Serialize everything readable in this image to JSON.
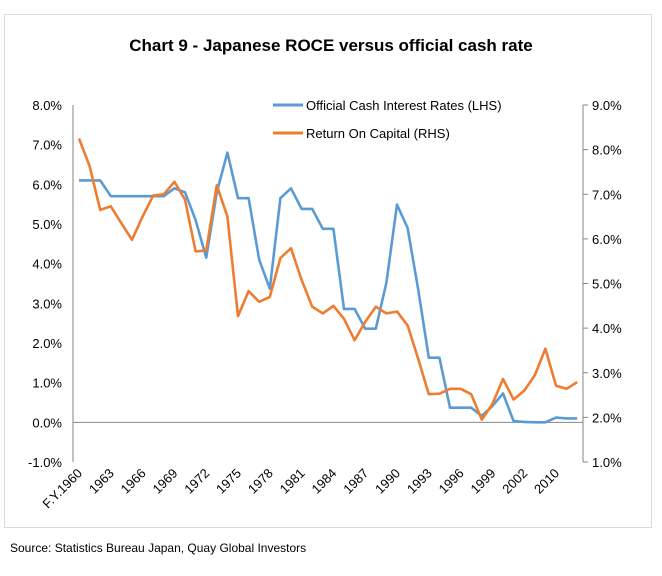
{
  "chart_data": {
    "type": "line",
    "title": "Chart 9 - Japanese ROCE versus official cash rate",
    "source": "Source: Statistics Bureau Japan, Quay Global Investors",
    "x_tick_labels": [
      "F.Y.1960",
      "1963",
      "1966",
      "1969",
      "1972",
      "1975",
      "1978",
      "1981",
      "1984",
      "1987",
      "1990",
      "1993",
      "1996",
      "1999",
      "2002",
      "2010"
    ],
    "x_tick_every": 3,
    "left_axis": {
      "ylim": [
        -1,
        8
      ],
      "step": 1,
      "tick_labels": [
        "-1.0%",
        "0.0%",
        "1.0%",
        "2.0%",
        "3.0%",
        "4.0%",
        "5.0%",
        "6.0%",
        "7.0%",
        "8.0%"
      ]
    },
    "right_axis": {
      "ylim": [
        1,
        9
      ],
      "step": 1,
      "tick_labels": [
        "1.0%",
        "2.0%",
        "3.0%",
        "4.0%",
        "5.0%",
        "6.0%",
        "7.0%",
        "8.0%",
        "9.0%"
      ]
    },
    "grid": false,
    "legend_position": "top",
    "series": [
      {
        "name": "Official Cash Interest Rates (LHS)",
        "axis": "left",
        "color": "#5b9bd5",
        "values": [
          6.1,
          6.1,
          6.1,
          5.7,
          5.7,
          5.7,
          5.7,
          5.7,
          5.7,
          5.9,
          5.8,
          5.1,
          4.15,
          5.8,
          6.8,
          5.65,
          5.65,
          4.1,
          3.37,
          5.65,
          5.9,
          5.38,
          5.38,
          4.88,
          4.88,
          2.86,
          2.86,
          2.36,
          2.36,
          3.52,
          5.49,
          4.9,
          3.35,
          1.63,
          1.63,
          0.37,
          0.37,
          0.37,
          0.16,
          0.41,
          0.73,
          0.03,
          0.01,
          0.0,
          0.0,
          0.12,
          0.1,
          0.1
        ]
      },
      {
        "name": "Return On Capital (RHS)",
        "axis": "right",
        "color": "#ed7d31",
        "values": [
          8.25,
          7.63,
          6.65,
          6.73,
          6.35,
          5.98,
          6.5,
          6.97,
          7.0,
          7.28,
          6.88,
          5.72,
          5.74,
          7.2,
          6.5,
          4.27,
          4.83,
          4.59,
          4.7,
          5.57,
          5.79,
          5.08,
          4.48,
          4.33,
          4.5,
          4.21,
          3.73,
          4.14,
          4.48,
          4.33,
          4.37,
          4.06,
          3.31,
          2.52,
          2.53,
          2.64,
          2.64,
          2.52,
          1.95,
          2.3,
          2.86,
          2.4,
          2.6,
          2.94,
          3.54,
          2.71,
          2.64,
          2.79
        ]
      }
    ]
  }
}
